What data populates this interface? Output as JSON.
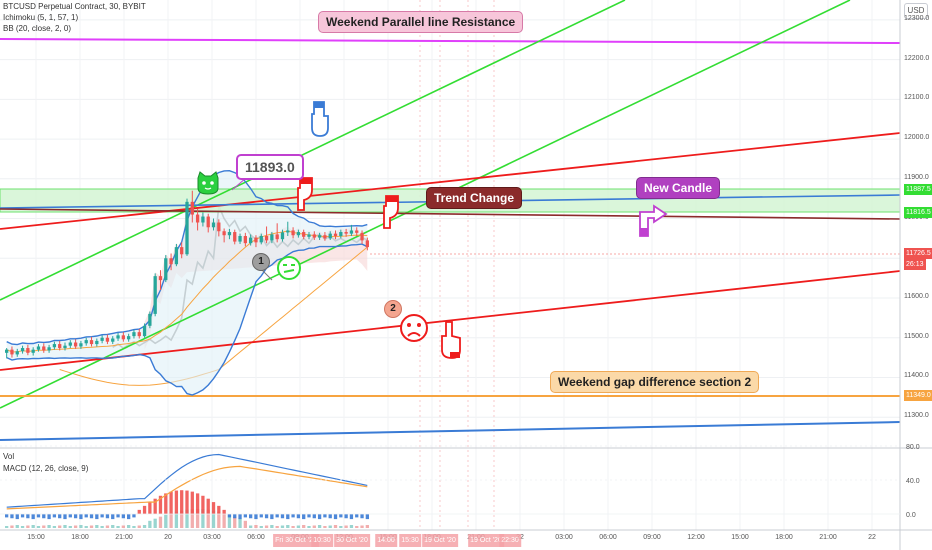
{
  "header": {
    "symbol": "BTCUSD Perpetual Contract, 30, BYBIT",
    "ichimoku": "Ichimoku (5, 1, 57, 1)",
    "bb": "BB (20, close, 2, 0)",
    "vol": "Vol",
    "macd": "MACD (12, 26, close, 9)"
  },
  "currency": "USD",
  "annotations": {
    "weekend_resistance": "Weekend Parallel line Resistance",
    "price_callout": "11893.0",
    "trend_change": "Trend Change",
    "new_candle": "New Candle",
    "weekend_gap": "Weekend gap difference section 2",
    "badge_1": "1",
    "badge_2": "2"
  },
  "price_labels": {
    "green_band_top": "11887.5",
    "green_band_bottom": "11816.5",
    "last_price": "11726.5",
    "countdown": "26:13",
    "orange_line": "11349.0"
  },
  "colors": {
    "bull": "#26a69a",
    "bear": "#ef5350",
    "resistance": "#e040fb",
    "green_line": "#33dd33",
    "red_line": "#ee1c1c",
    "blue_line": "#3a7bd5",
    "orange_line": "#f7a440"
  },
  "chart_data": {
    "type": "candlestick",
    "y_ticks": [
      "12300.0",
      "12200.0",
      "12100.0",
      "12000.0",
      "11900.0",
      "11800.0",
      "11700.0",
      "11600.0",
      "11500.0",
      "11400.0",
      "11300.0"
    ],
    "ylim": [
      11230,
      12350
    ],
    "macd_ticks": [
      "80.0",
      "40.0",
      "0.0"
    ],
    "x_ticks": [
      "15:00",
      "18:00",
      "21:00",
      "20",
      "03:00",
      "06:00",
      "09:00",
      "12:00",
      "15:00",
      "18:00",
      "21:00",
      "22",
      "03:00",
      "06:00",
      "09:00",
      "12:00",
      "15:00",
      "18:00",
      "21:00",
      "22"
    ],
    "x_highlight_labels": [
      "Fri 30 Oct '20",
      "10:30",
      "30 Oct '20",
      "14:00",
      "15:30",
      "19 Oct '20",
      "19 Oct '20",
      "22:30"
    ],
    "key_levels": {
      "weekend_resistance": 12280,
      "green_band": [
        11816.5,
        11887.5
      ],
      "orange_level": 11349.0,
      "last_price": 11726.5,
      "callout_price": 11893.0
    },
    "candles": [
      [
        11462,
        11470,
        11448,
        11474
      ],
      [
        11470,
        11458,
        11450,
        11478
      ],
      [
        11458,
        11466,
        11452,
        11472
      ],
      [
        11466,
        11474,
        11460,
        11480
      ],
      [
        11474,
        11462,
        11456,
        11482
      ],
      [
        11462,
        11470,
        11455,
        11476
      ],
      [
        11470,
        11478,
        11465,
        11484
      ],
      [
        11478,
        11468,
        11462,
        11486
      ],
      [
        11468,
        11476,
        11462,
        11482
      ],
      [
        11476,
        11484,
        11470,
        11490
      ],
      [
        11484,
        11474,
        11468,
        11492
      ],
      [
        11474,
        11480,
        11468,
        11488
      ],
      [
        11480,
        11488,
        11474,
        11494
      ],
      [
        11488,
        11478,
        11472,
        11496
      ],
      [
        11478,
        11486,
        11472,
        11492
      ],
      [
        11486,
        11494,
        11480,
        11500
      ],
      [
        11494,
        11484,
        11478,
        11502
      ],
      [
        11484,
        11492,
        11478,
        11498
      ],
      [
        11492,
        11500,
        11486,
        11506
      ],
      [
        11500,
        11490,
        11484,
        11508
      ],
      [
        11490,
        11498,
        11484,
        11504
      ],
      [
        11498,
        11506,
        11492,
        11512
      ],
      [
        11506,
        11496,
        11490,
        11514
      ],
      [
        11496,
        11504,
        11490,
        11510
      ],
      [
        11504,
        11514,
        11498,
        11520
      ],
      [
        11514,
        11504,
        11498,
        11522
      ],
      [
        11504,
        11530,
        11500,
        11536
      ],
      [
        11530,
        11560,
        11524,
        11566
      ],
      [
        11560,
        11655,
        11554,
        11662
      ],
      [
        11655,
        11645,
        11620,
        11670
      ],
      [
        11645,
        11700,
        11640,
        11708
      ],
      [
        11700,
        11685,
        11670,
        11712
      ],
      [
        11685,
        11728,
        11680,
        11736
      ],
      [
        11728,
        11710,
        11700,
        11740
      ],
      [
        11710,
        11842,
        11706,
        11850
      ],
      [
        11842,
        11810,
        11790,
        11870
      ],
      [
        11810,
        11790,
        11770,
        11825
      ],
      [
        11790,
        11805,
        11780,
        11815
      ],
      [
        11805,
        11778,
        11765,
        11812
      ],
      [
        11778,
        11790,
        11770,
        11800
      ],
      [
        11790,
        11768,
        11755,
        11798
      ],
      [
        11768,
        11758,
        11740,
        11775
      ],
      [
        11758,
        11766,
        11748,
        11774
      ],
      [
        11766,
        11742,
        11735,
        11772
      ],
      [
        11742,
        11756,
        11736,
        11762
      ],
      [
        11756,
        11738,
        11730,
        11764
      ],
      [
        11738,
        11752,
        11732,
        11760
      ],
      [
        11752,
        11740,
        11728,
        11758
      ],
      [
        11740,
        11756,
        11735,
        11762
      ],
      [
        11756,
        11745,
        11738,
        11780
      ],
      [
        11745,
        11760,
        11738,
        11766
      ],
      [
        11760,
        11748,
        11740,
        11788
      ],
      [
        11748,
        11765,
        11742,
        11772
      ],
      [
        11765,
        11770,
        11756,
        11792
      ],
      [
        11770,
        11758,
        11750,
        11778
      ],
      [
        11758,
        11766,
        11752,
        11772
      ],
      [
        11766,
        11754,
        11748,
        11772
      ],
      [
        11754,
        11760,
        11748,
        11766
      ],
      [
        11760,
        11752,
        11746,
        11768
      ],
      [
        11752,
        11758,
        11746,
        11764
      ],
      [
        11758,
        11750,
        11744,
        11766
      ],
      [
        11750,
        11762,
        11746,
        11768
      ],
      [
        11762,
        11756,
        11748,
        11770
      ],
      [
        11756,
        11766,
        11750,
        11772
      ],
      [
        11766,
        11762,
        11754,
        11774
      ],
      [
        11762,
        11770,
        11756,
        11784
      ],
      [
        11770,
        11764,
        11756,
        11778
      ],
      [
        11764,
        11745,
        11736,
        11770
      ],
      [
        11745,
        11728,
        11720,
        11752
      ]
    ]
  }
}
